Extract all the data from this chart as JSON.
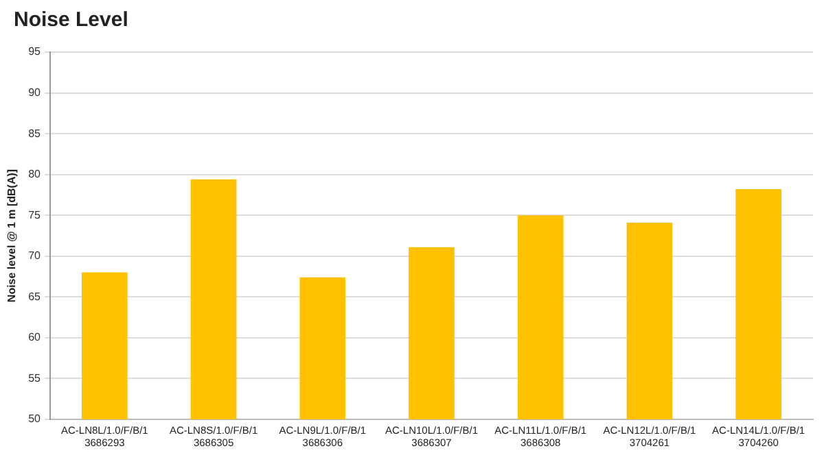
{
  "chart_data": {
    "type": "bar",
    "title": "Noise Level",
    "ylabel": "Noise level @ 1 m [dB(A)]",
    "categories": [
      "AC-LN8L/1.0/F/B/1\n3686293",
      "AC-LN8S/1.0/F/B/1\n3686305",
      "AC-LN9L/1.0/F/B/1\n3686306",
      "AC-LN10L/1.0/F/B/1\n3686307",
      "AC-LN11L/1.0/F/B/1\n3686308",
      "AC-LN12L/1.0/F/B/1\n3704261",
      "AC-LN14L/1.0/F/B/1\n3704260"
    ],
    "values": [
      68.0,
      79.4,
      67.4,
      71.1,
      75.0,
      74.1,
      78.2
    ],
    "color": "#ffc000",
    "ylim": [
      50,
      95
    ],
    "yticks": [
      50,
      55,
      60,
      65,
      70,
      75,
      80,
      85,
      90,
      95
    ],
    "grid": "y"
  }
}
